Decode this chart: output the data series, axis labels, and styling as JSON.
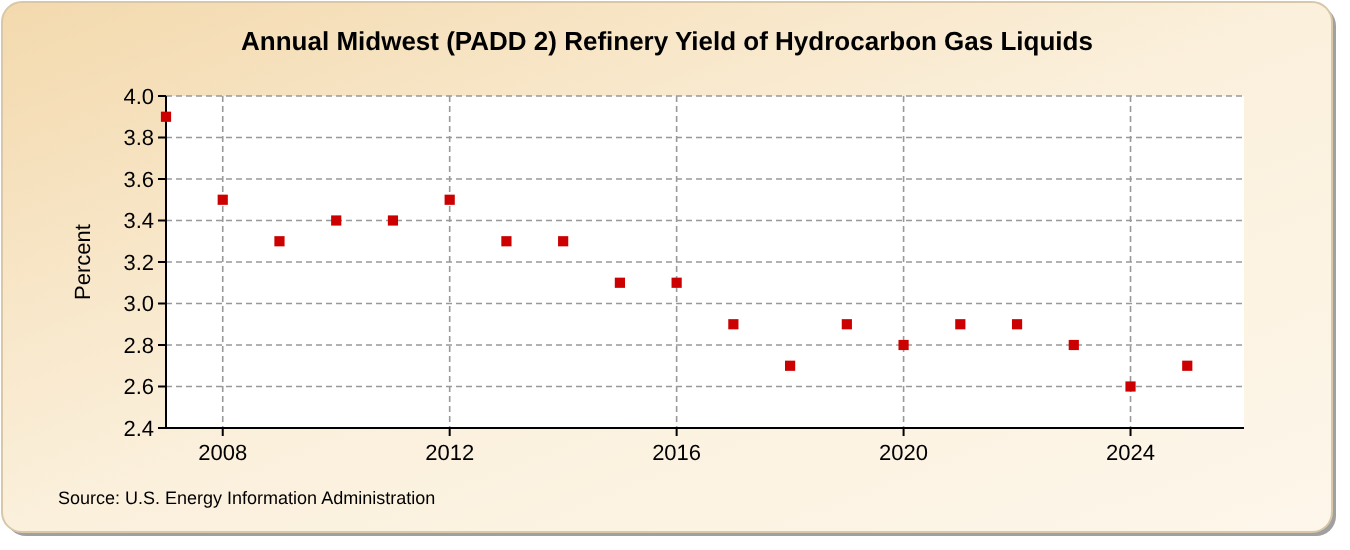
{
  "chart_data": {
    "type": "scatter",
    "title": "Annual Midwest (PADD 2) Refinery Yield of Hydrocarbon Gas Liquids",
    "ylabel": "Percent",
    "x": [
      2007,
      2008,
      2009,
      2010,
      2011,
      2012,
      2013,
      2014,
      2015,
      2016,
      2017,
      2018,
      2019,
      2020,
      2021,
      2022,
      2023,
      2024,
      2025
    ],
    "values": [
      3.9,
      3.5,
      3.3,
      3.4,
      3.4,
      3.5,
      3.3,
      3.3,
      3.1,
      3.1,
      2.9,
      2.7,
      2.9,
      2.8,
      2.9,
      2.9,
      2.8,
      2.6,
      2.7
    ],
    "color": "#cc0000",
    "marker": "square",
    "xlim": [
      2007,
      2026
    ],
    "xticks": [
      2008,
      2012,
      2016,
      2020,
      2024
    ],
    "ylim": [
      2.4,
      4.0
    ],
    "yticks": [
      {
        "value": 2.4,
        "label": "2.4"
      },
      {
        "value": 2.6,
        "label": "2.6"
      },
      {
        "value": 2.8,
        "label": "2.8"
      },
      {
        "value": 3.0,
        "label": "3.0"
      },
      {
        "value": 3.2,
        "label": "3.2"
      },
      {
        "value": 3.4,
        "label": "3.4"
      },
      {
        "value": 3.6,
        "label": "3.6"
      },
      {
        "value": 3.8,
        "label": "3.8"
      },
      {
        "value": 4.0,
        "label": "4.0"
      }
    ],
    "grid": true,
    "annotations": [
      "Source: U.S. Energy Information Administration"
    ]
  }
}
